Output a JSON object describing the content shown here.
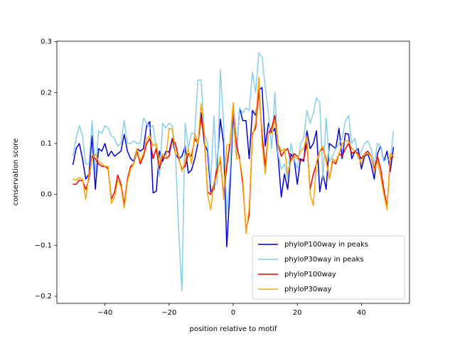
{
  "chart_data": {
    "type": "line",
    "xlabel": "position relative to motif",
    "ylabel": "conservation score",
    "x": [
      -50,
      -49,
      -48,
      -47,
      -46,
      -45,
      -44,
      -43,
      -42,
      -41,
      -40,
      -39,
      -38,
      -37,
      -36,
      -35,
      -34,
      -33,
      -32,
      -31,
      -30,
      -29,
      -28,
      -27,
      -26,
      -25,
      -24,
      -23,
      -22,
      -21,
      -20,
      -19,
      -18,
      -17,
      -16,
      -15,
      -14,
      -13,
      -12,
      -11,
      -10,
      -9,
      -8,
      -7,
      -6,
      -5,
      -4,
      -3,
      -2,
      -1,
      0,
      1,
      2,
      3,
      4,
      5,
      6,
      7,
      8,
      9,
      10,
      11,
      12,
      13,
      14,
      15,
      16,
      17,
      18,
      19,
      20,
      21,
      22,
      23,
      24,
      25,
      26,
      27,
      28,
      29,
      30,
      31,
      32,
      33,
      34,
      35,
      36,
      37,
      38,
      39,
      40,
      41,
      42,
      43,
      44,
      45,
      46,
      47,
      48,
      49,
      50
    ],
    "series": [
      {
        "name": "phyloP100way in peaks",
        "color": "#0000dd",
        "values": [
          0.058,
          0.09,
          0.1,
          0.07,
          0.03,
          0.04,
          0.115,
          0.01,
          0.09,
          0.085,
          0.1,
          0.075,
          0.085,
          0.075,
          0.08,
          0.085,
          0.118,
          0.085,
          0.07,
          0.065,
          0.09,
          0.085,
          0.09,
          0.135,
          0.143,
          0.003,
          0.006,
          0.085,
          0.065,
          0.085,
          0.083,
          0.11,
          0.08,
          0.07,
          0.075,
          0.095,
          0.042,
          0.048,
          0.07,
          0.1,
          0.16,
          0.1,
          0.085,
          0.005,
          0.01,
          0.06,
          0.148,
          0.1,
          -0.103,
          0.01,
          0.16,
          0.075,
          0.17,
          0.145,
          0.145,
          0.07,
          0.165,
          0.155,
          0.205,
          0.21,
          0.095,
          0.14,
          0.12,
          0.13,
          0.075,
          -0.005,
          0.04,
          0.01,
          0.08,
          0.07,
          0.02,
          0.07,
          0.065,
          0.125,
          0.09,
          0.1,
          0.125,
          0.005,
          0.04,
          0.01,
          0.1,
          0.095,
          0.09,
          0.13,
          0.07,
          0.12,
          0.118,
          0.07,
          0.085,
          0.09,
          0.05,
          0.075,
          0.08,
          0.06,
          0.03,
          0.08,
          0.095,
          0.065,
          0.085,
          0.045,
          0.093
        ]
      },
      {
        "name": "phyloP30way in peaks",
        "color": "#87ceeb",
        "values": [
          0.075,
          0.11,
          0.135,
          0.115,
          0.06,
          0.06,
          0.145,
          0.04,
          0.125,
          0.12,
          0.135,
          0.13,
          0.115,
          0.11,
          0.095,
          0.1,
          0.145,
          0.1,
          0.1,
          0.105,
          0.1,
          0.1,
          0.15,
          0.14,
          0.13,
          0.135,
          0.09,
          0.035,
          0.14,
          0.13,
          0.14,
          0.135,
          0.08,
          -0.07,
          -0.19,
          0.14,
          0.09,
          0.12,
          0.12,
          0.225,
          0.225,
          0.12,
          0.1,
          0.02,
          0.155,
          0.02,
          0.245,
          0.14,
          -0.04,
          0.04,
          0.18,
          0.08,
          0.17,
          0.16,
          0.17,
          0.165,
          0.24,
          0.2,
          0.278,
          0.27,
          0.21,
          0.16,
          0.09,
          0.2,
          0.08,
          0.05,
          0.06,
          0.03,
          0.1,
          0.07,
          0.05,
          0.1,
          0.11,
          0.165,
          0.14,
          0.16,
          0.19,
          0.18,
          0.03,
          0.15,
          0.065,
          0.075,
          0.09,
          0.1,
          0.11,
          0.145,
          0.155,
          0.1,
          0.11,
          0.07,
          0.085,
          0.1,
          0.105,
          0.09,
          0.06,
          0.1,
          0.095,
          0.065,
          0.07,
          0.065,
          0.125
        ]
      },
      {
        "name": "phyloP100way",
        "color": "#ee0000",
        "values": [
          0.02,
          0.02,
          0.028,
          0.027,
          0.01,
          0.03,
          0.075,
          0.07,
          0.06,
          0.055,
          0.055,
          0.05,
          -0.01,
          0.005,
          0.038,
          0.02,
          -0.02,
          0.03,
          0.055,
          0.06,
          0.085,
          0.06,
          0.075,
          0.1,
          0.11,
          0.07,
          0.09,
          0.05,
          0.075,
          0.07,
          0.075,
          0.11,
          0.1,
          0.07,
          0.05,
          0.055,
          0.08,
          0.075,
          0.11,
          0.1,
          0.15,
          0.11,
          0.005,
          0.0,
          0.02,
          0.05,
          0.065,
          0.0,
          0.055,
          0.1,
          0.175,
          0.1,
          0.07,
          0.02,
          -0.07,
          -0.04,
          0.12,
          0.13,
          0.205,
          0.12,
          0.055,
          0.12,
          0.13,
          0.155,
          0.1,
          0.075,
          0.085,
          0.09,
          0.065,
          0.08,
          0.075,
          0.065,
          0.07,
          0.1,
          0.01,
          0.04,
          0.06,
          0.085,
          0.09,
          0.07,
          0.03,
          0.065,
          0.06,
          0.08,
          0.075,
          0.09,
          0.1,
          0.08,
          0.085,
          0.08,
          0.07,
          0.08,
          0.085,
          0.075,
          0.05,
          0.075,
          0.05,
          0.01,
          -0.025,
          0.07,
          0.075
        ]
      },
      {
        "name": "phyloP30way",
        "color": "#ffa500",
        "values": [
          0.03,
          0.028,
          0.033,
          0.03,
          -0.01,
          0.04,
          0.07,
          0.08,
          0.065,
          0.06,
          0.055,
          0.055,
          -0.018,
          -0.005,
          0.028,
          0.015,
          -0.027,
          0.025,
          0.05,
          0.06,
          0.09,
          0.065,
          0.08,
          0.11,
          0.115,
          0.095,
          0.1,
          0.06,
          0.08,
          0.07,
          0.13,
          0.128,
          0.08,
          0.075,
          0.045,
          0.065,
          0.09,
          0.06,
          0.12,
          0.1,
          0.178,
          0.12,
          0.0,
          -0.03,
          0.02,
          0.04,
          0.075,
          -0.01,
          0.095,
          0.1,
          0.18,
          0.07,
          0.07,
          0.03,
          -0.077,
          -0.025,
          0.115,
          0.14,
          0.23,
          0.1,
          0.04,
          0.12,
          0.12,
          0.145,
          0.1,
          0.085,
          0.09,
          0.04,
          0.065,
          0.075,
          0.07,
          0.085,
          0.09,
          0.115,
          0.0,
          -0.022,
          0.065,
          0.085,
          0.095,
          0.065,
          0.03,
          0.07,
          0.065,
          0.08,
          0.1,
          0.105,
          0.105,
          0.09,
          0.085,
          0.075,
          0.06,
          0.08,
          0.08,
          0.075,
          0.045,
          0.065,
          0.035,
          0.0,
          -0.03,
          0.08,
          0.075
        ]
      }
    ],
    "xlim": [
      -55,
      55
    ],
    "ylim": [
      -0.214,
      0.301
    ],
    "xticks": [
      {
        "value": -40,
        "label": "−40"
      },
      {
        "value": -20,
        "label": "−20"
      },
      0,
      20,
      40
    ],
    "yticks": [
      {
        "value": -0.2,
        "label": "−0.2"
      },
      {
        "value": -0.1,
        "label": "−0.1"
      },
      {
        "value": 0,
        "label": "0.0"
      },
      0.1,
      0.2,
      0.3
    ],
    "legend": "lower right"
  }
}
